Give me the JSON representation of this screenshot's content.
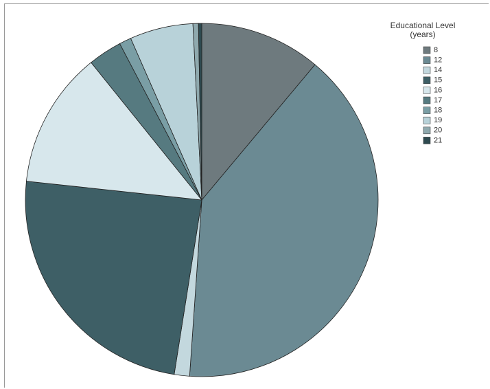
{
  "chart_data": {
    "type": "pie",
    "legend_title": "Educational Level (years)",
    "categories": [
      "8",
      "12",
      "14",
      "15",
      "16",
      "17",
      "18",
      "19",
      "20",
      "21"
    ],
    "values": [
      11.1,
      40,
      1.4,
      24.2,
      12.5,
      3.1,
      1.1,
      5.8,
      0.5,
      0.3
    ],
    "colors": [
      "#6e7a7e",
      "#6b8a93",
      "#c3d8de",
      "#3e5f66",
      "#d7e7ec",
      "#567a80",
      "#7a9ea5",
      "#b8d2d9",
      "#8fa9ae",
      "#2e4a50"
    ],
    "legend": "top-right"
  }
}
